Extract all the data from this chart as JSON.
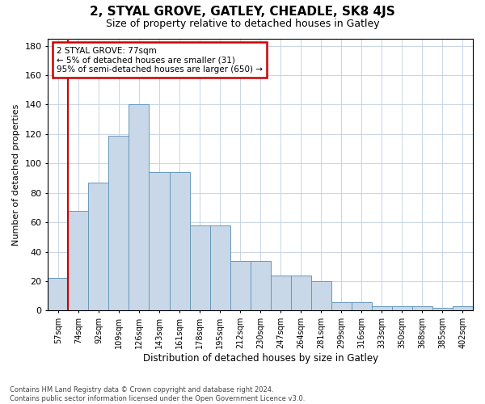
{
  "title": "2, STYAL GROVE, GATLEY, CHEADLE, SK8 4JS",
  "subtitle": "Size of property relative to detached houses in Gatley",
  "xlabel": "Distribution of detached houses by size in Gatley",
  "ylabel": "Number of detached properties",
  "categories": [
    "57sqm",
    "74sqm",
    "92sqm",
    "109sqm",
    "126sqm",
    "143sqm",
    "161sqm",
    "178sqm",
    "195sqm",
    "212sqm",
    "230sqm",
    "247sqm",
    "264sqm",
    "281sqm",
    "299sqm",
    "316sqm",
    "333sqm",
    "350sqm",
    "368sqm",
    "385sqm",
    "402sqm"
  ],
  "bar_heights": [
    22,
    68,
    87,
    119,
    140,
    94,
    94,
    58,
    58,
    34,
    34,
    24,
    24,
    20,
    6,
    6,
    3,
    3,
    3,
    2,
    3
  ],
  "bar_color": "#c8d8e8",
  "bar_edge_color": "#6699bb",
  "annotation_text_line1": "2 STYAL GROVE: 77sqm",
  "annotation_text_line2": "← 5% of detached houses are smaller (31)",
  "annotation_text_line3": "95% of semi-detached houses are larger (650) →",
  "annotation_box_facecolor": "#ffffff",
  "annotation_box_edgecolor": "#cc0000",
  "vline_color": "#cc0000",
  "vline_x_index": 0.5,
  "ylim": [
    0,
    185
  ],
  "yticks": [
    0,
    20,
    40,
    60,
    80,
    100,
    120,
    140,
    160,
    180
  ],
  "footer_line1": "Contains HM Land Registry data © Crown copyright and database right 2024.",
  "footer_line2": "Contains public sector information licensed under the Open Government Licence v3.0.",
  "background_color": "#ffffff",
  "grid_color": "#c0cfe0",
  "title_fontsize": 11,
  "subtitle_fontsize": 9,
  "xlabel_fontsize": 8.5,
  "ylabel_fontsize": 8,
  "tick_fontsize": 7,
  "annotation_fontsize": 7.5,
  "footer_fontsize": 6
}
